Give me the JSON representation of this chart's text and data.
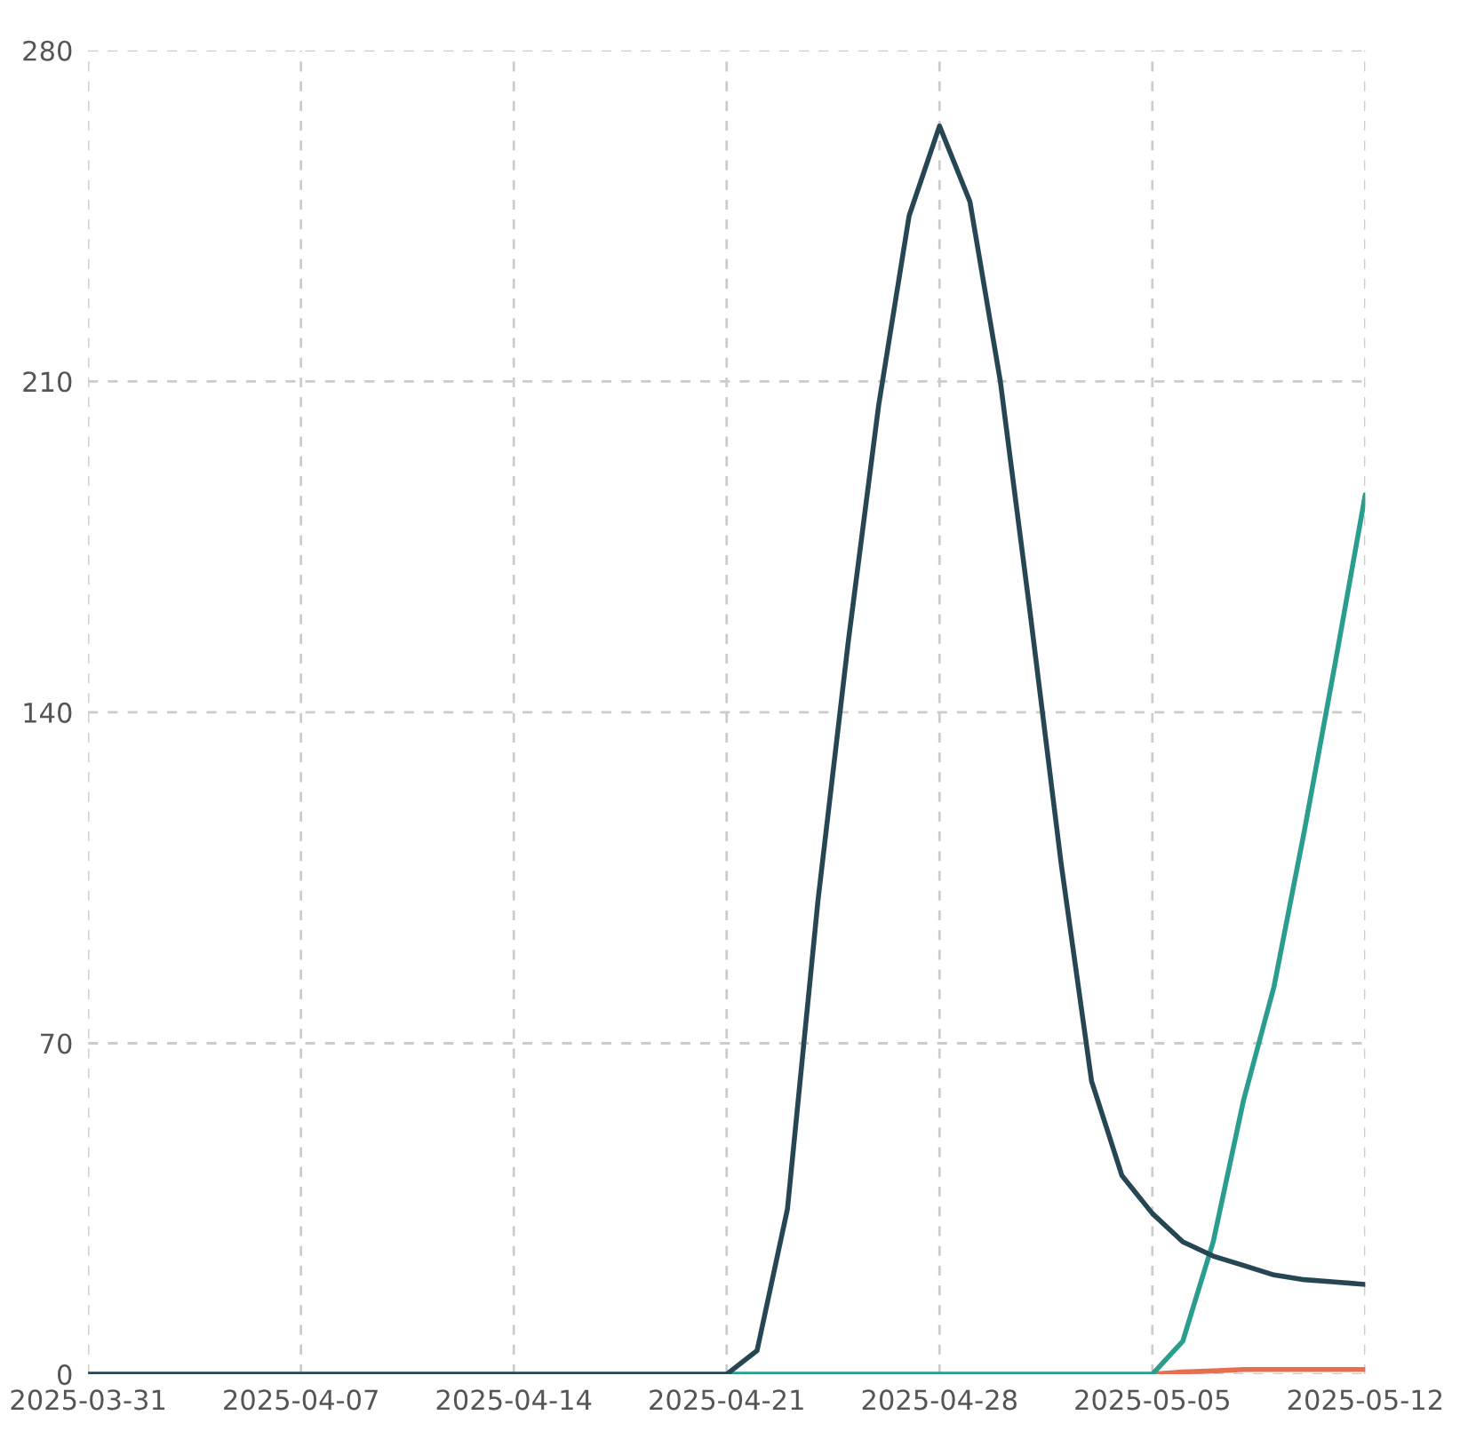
{
  "chart_data": {
    "type": "line",
    "xlim": [
      "2025-03-31",
      "2025-05-12"
    ],
    "xticks": [
      "2025-03-31",
      "2025-04-07",
      "2025-04-14",
      "2025-04-21",
      "2025-04-28",
      "2025-05-05",
      "2025-05-12"
    ],
    "ylim": [
      0,
      280
    ],
    "yticks": [
      0,
      70,
      140,
      210,
      280
    ],
    "grid": true,
    "line_style": "solid",
    "marker": "none",
    "series": [
      {
        "color": "#e76f51",
        "x": [
          "2025-05-05",
          "2025-05-06",
          "2025-05-07",
          "2025-05-08",
          "2025-05-09",
          "2025-05-10",
          "2025-05-11",
          "2025-05-12"
        ],
        "values": [
          0,
          0.5,
          0.7,
          1,
          1,
          1,
          1,
          1
        ]
      },
      {
        "color": "#2a9d8f",
        "x": [
          "2025-04-21",
          "2025-04-28",
          "2025-05-05",
          "2025-05-06",
          "2025-05-07",
          "2025-05-08",
          "2025-05-09",
          "2025-05-10",
          "2025-05-11",
          "2025-05-12"
        ],
        "values": [
          0,
          0,
          0,
          7,
          28,
          58,
          82,
          115,
          150,
          186
        ]
      },
      {
        "color": "#264653",
        "x": [
          "2025-03-31",
          "2025-04-07",
          "2025-04-14",
          "2025-04-21",
          "2025-04-22",
          "2025-04-23",
          "2025-04-24",
          "2025-04-25",
          "2025-04-26",
          "2025-04-27",
          "2025-04-28",
          "2025-04-29",
          "2025-04-30",
          "2025-05-01",
          "2025-05-02",
          "2025-05-03",
          "2025-05-04",
          "2025-05-05",
          "2025-05-06",
          "2025-05-07",
          "2025-05-08",
          "2025-05-09",
          "2025-05-10",
          "2025-05-11",
          "2025-05-12"
        ],
        "values": [
          0,
          0,
          0,
          0,
          5,
          35,
          100,
          155,
          205,
          245,
          264,
          248,
          210,
          160,
          108,
          62,
          42,
          34,
          28,
          25,
          23,
          21,
          20,
          19.5,
          19
        ]
      }
    ]
  }
}
